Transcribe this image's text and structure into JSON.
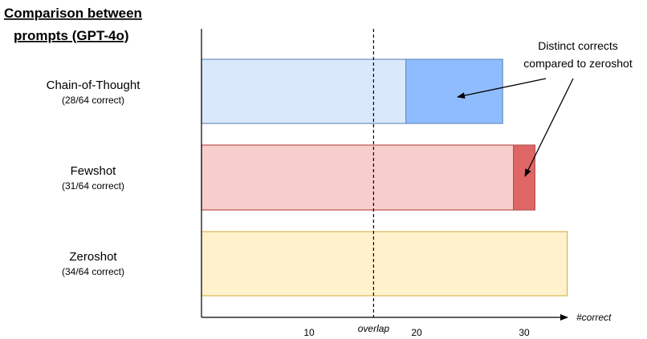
{
  "chart_data": {
    "type": "bar",
    "title": "Comparison between prompts (GPT-4o)",
    "title_lines": [
      "Comparison between",
      "prompts (GPT-4o)"
    ],
    "xlabel": "#correct",
    "ylabel": "",
    "xlim": [
      0,
      35
    ],
    "x_ticks": [
      10,
      20,
      30
    ],
    "grid": false,
    "overlap_line": {
      "x": 16,
      "label": "overlap"
    },
    "categories": [
      {
        "name": "Chain-of-Thought",
        "detail": "(28/64 correct)",
        "total": 28,
        "overlap": 19,
        "overlap_fill": "#dae8fc",
        "overlap_stroke": "#6c8ebf",
        "distinct_fill": "#8fbcff"
      },
      {
        "name": "Fewshot",
        "detail": "(31/64 correct)",
        "total": 31,
        "overlap": 29,
        "overlap_fill": "#f8cecc",
        "overlap_stroke": "#b85450",
        "distinct_fill": "#e06666"
      },
      {
        "name": "Zeroshot",
        "detail": "(34/64 correct)",
        "total": 34,
        "overlap": 34,
        "overlap_fill": "#fff2cc",
        "overlap_stroke": "#d6b656",
        "distinct_fill": "#fff2cc"
      }
    ],
    "annotation": {
      "lines": [
        "Distinct corrects",
        "compared to zeroshot"
      ],
      "targets": [
        "Chain-of-Thought",
        "Fewshot"
      ]
    }
  }
}
